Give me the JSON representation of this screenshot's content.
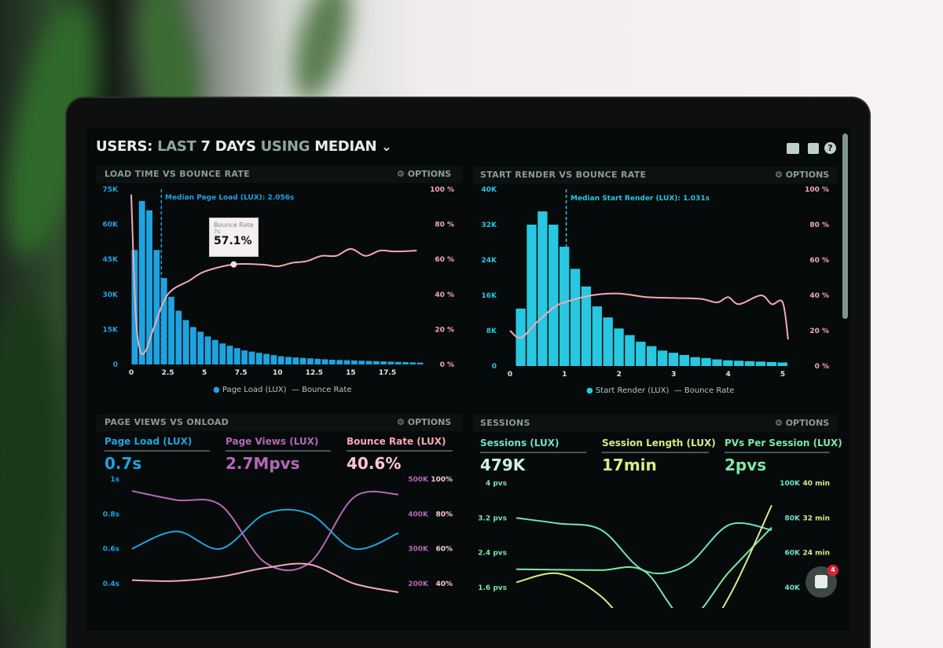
{
  "header": {
    "prefix": "USERS:",
    "part1": "LAST",
    "part2": "7 DAYS",
    "part3": "USING",
    "part4": "MEDIAN",
    "dropdown_icon": "chevron-down-icon"
  },
  "toolbar_icons": [
    "monitor-icon",
    "share-icon",
    "help-icon"
  ],
  "colors": {
    "page_load": "#1fa3e0",
    "start_render": "#27c8e0",
    "bounce": "#f4a7b9",
    "page_views": "#b468b6",
    "sessions": "#6fe3c4",
    "session_length": "#d8ea8c",
    "pvs_per_session": "#7de8a8",
    "notification": "#e02030"
  },
  "options_label": "OPTIONS",
  "panels": {
    "load": {
      "title": "LOAD TIME VS BOUNCE RATE",
      "median_label": "Median Page Load (LUX): 2.056s",
      "tooltip": {
        "title": "Bounce Rate",
        "sub": "7s",
        "value": "57.1%"
      },
      "legend": [
        "Page Load (LUX)",
        "Bounce Rate"
      ]
    },
    "render": {
      "title": "START RENDER VS BOUNCE RATE",
      "median_label": "Median Start Render (LUX): 1.031s",
      "legend": [
        "Start Render (LUX)",
        "Bounce Rate"
      ]
    },
    "views": {
      "title": "PAGE VIEWS VS ONLOAD",
      "kpis": [
        {
          "label": "Page Load (LUX)",
          "value": "0.7s"
        },
        {
          "label": "Page Views (LUX)",
          "value": "2.7Mpvs"
        },
        {
          "label": "Bounce Rate (LUX)",
          "value": "40.6%"
        }
      ]
    },
    "sessions": {
      "title": "SESSIONS",
      "kpis": [
        {
          "label": "Sessions (LUX)",
          "value": "479K"
        },
        {
          "label": "Session Length (LUX)",
          "value": "17min"
        },
        {
          "label": "PVs Per Session (LUX)",
          "value": "2pvs"
        }
      ]
    }
  },
  "chat": {
    "badge": "4"
  },
  "chart_data": [
    {
      "type": "bar",
      "title": "LOAD TIME VS BOUNCE RATE",
      "xlim": [
        0,
        20
      ],
      "bin_width": 0.5,
      "x_ticks": [
        "0",
        "2.5",
        "5",
        "7.5",
        "10",
        "12.5",
        "15",
        "17.5"
      ],
      "y_ticks": [
        "0",
        "15K",
        "30K",
        "45K",
        "60K",
        "75K"
      ],
      "y2_ticks": [
        "0 %",
        "20 %",
        "40 %",
        "60 %",
        "80 %",
        "100 %"
      ],
      "ylim": [
        0,
        75000
      ],
      "y2lim": [
        0,
        100
      ],
      "median": 2.056,
      "series": [
        {
          "name": "Page Load (LUX)",
          "type": "bar",
          "values_k": [
            49,
            70,
            66,
            49,
            37,
            29,
            23,
            19,
            16,
            14,
            12,
            10.5,
            9,
            8,
            7,
            6,
            5.5,
            5,
            4.5,
            4,
            3.5,
            3.2,
            3,
            2.8,
            2.6,
            2.4,
            2.2,
            2,
            1.9,
            1.8,
            1.7,
            1.6,
            1.5,
            1.4,
            1.3,
            1.2,
            1.1,
            1.0,
            0.9,
            0.8
          ]
        },
        {
          "name": "Bounce Rate",
          "type": "line",
          "points": [
            [
              0,
              97
            ],
            [
              0.3,
              30
            ],
            [
              0.6,
              8
            ],
            [
              1,
              8
            ],
            [
              1.5,
              20
            ],
            [
              2.5,
              40
            ],
            [
              4,
              48
            ],
            [
              5,
              53
            ],
            [
              7,
              57.1
            ],
            [
              9,
              57
            ],
            [
              10,
              56
            ],
            [
              11,
              58
            ],
            [
              12,
              59
            ],
            [
              13,
              62
            ],
            [
              14,
              62
            ],
            [
              15,
              66
            ],
            [
              16,
              62
            ],
            [
              17,
              65
            ],
            [
              18,
              64.5
            ],
            [
              19.5,
              65
            ]
          ]
        }
      ]
    },
    {
      "type": "bar",
      "title": "START RENDER VS BOUNCE RATE",
      "xlim": [
        0,
        5.2
      ],
      "bin_width": 0.2,
      "x_ticks": [
        "0",
        "1",
        "2",
        "3",
        "4",
        "5"
      ],
      "y_ticks": [
        "0",
        "8K",
        "16K",
        "24K",
        "32K",
        "40K"
      ],
      "y2_ticks": [
        "0 %",
        "20 %",
        "40 %",
        "60 %",
        "80 %",
        "100 %"
      ],
      "ylim": [
        0,
        40000
      ],
      "y2lim": [
        0,
        100
      ],
      "median": 1.031,
      "series": [
        {
          "name": "Start Render (LUX)",
          "type": "bar",
          "values_k": [
            13,
            32,
            35,
            32,
            27,
            22,
            18,
            13.5,
            11,
            8.5,
            7,
            5.5,
            4.5,
            3.5,
            3,
            2.5,
            2,
            1.8,
            1.5,
            1.3,
            1.2,
            1.1,
            1.0,
            0.9,
            0.8
          ]
        },
        {
          "name": "Bounce Rate",
          "type": "line",
          "points": [
            [
              0,
              20
            ],
            [
              0.2,
              16
            ],
            [
              0.5,
              25
            ],
            [
              0.8,
              33
            ],
            [
              1,
              36
            ],
            [
              1.5,
              40
            ],
            [
              2,
              41
            ],
            [
              2.5,
              39
            ],
            [
              3,
              38.5
            ],
            [
              3.5,
              38
            ],
            [
              3.8,
              36
            ],
            [
              4,
              39
            ],
            [
              4.2,
              35
            ],
            [
              4.6,
              40
            ],
            [
              4.8,
              35
            ],
            [
              5,
              36
            ],
            [
              5.1,
              15
            ]
          ]
        }
      ]
    },
    {
      "type": "line",
      "title": "PAGE VIEWS VS ONLOAD",
      "y_ticks": [
        "0.4s",
        "0.6s",
        "0.8s",
        "1s"
      ],
      "y2_ticks": [
        "200K",
        "300K",
        "400K",
        "500K"
      ],
      "y3_ticks": [
        "40%",
        "60%",
        "80%",
        "100%"
      ],
      "series": [
        {
          "name": "Page Load (LUX)",
          "values": [
            0.6,
            0.7,
            0.6,
            0.8,
            0.8,
            0.6,
            0.69
          ]
        },
        {
          "name": "Page Views (LUX)",
          "values": [
            466,
            440,
            425,
            260,
            260,
            448,
            456
          ]
        },
        {
          "name": "Bounce Rate (LUX)",
          "values": [
            42,
            41.5,
            44,
            49,
            51,
            40,
            35
          ]
        }
      ]
    },
    {
      "type": "line",
      "title": "SESSIONS",
      "y_ticks": [
        "1.6 pvs",
        "2.4 pvs",
        "3.2 pvs",
        "4 pvs"
      ],
      "y2_ticks": [
        "40K",
        "60K",
        "80K",
        "100K"
      ],
      "y3_ticks": [
        "24 min",
        "32 min",
        "40 min"
      ],
      "series": [
        {
          "name": "PVs Per Session (LUX)",
          "values": [
            3.2,
            3.07,
            2.92,
            1.99,
            2.11,
            3.04,
            2.92
          ]
        },
        {
          "name": "Sessions (LUX)",
          "values": [
            50.5,
            50.2,
            50,
            49.6,
            22,
            49,
            74.5
          ]
        },
        {
          "name": "Session Length (LUX)",
          "values": [
            17.2,
            19.2,
            13.9,
            3.1,
            0.1,
            13.9,
            34.9
          ]
        }
      ]
    }
  ]
}
